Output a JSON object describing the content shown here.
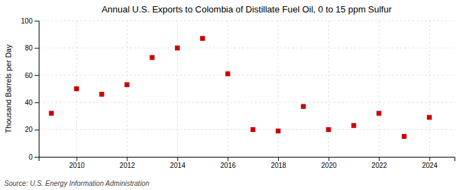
{
  "chart_data": {
    "type": "scatter",
    "title": "Annual U.S. Exports to Colombia of Distillate Fuel Oil, 0 to 15 ppm Sulfur",
    "ylabel": "Thousand Barrels per Day",
    "annotations": [
      "Source: U.S. Energy Information Administration"
    ],
    "x": [
      2009,
      2010,
      2011,
      2012,
      2013,
      2014,
      2015,
      2016,
      2017,
      2018,
      2019,
      2020,
      2021,
      2022,
      2023,
      2024
    ],
    "values": [
      32,
      50,
      46,
      53,
      73,
      80,
      87,
      61,
      20,
      19,
      37,
      20,
      23,
      32,
      15,
      29
    ],
    "color": "#cc0000",
    "marker": "square",
    "xlim": [
      2008.5,
      2025.0
    ],
    "xticks": [
      2010,
      2012,
      2014,
      2016,
      2018,
      2020,
      2022,
      2024
    ],
    "ylim": [
      0,
      100
    ],
    "yticks": [
      0,
      20,
      40,
      60,
      80,
      100
    ],
    "grid": true
  }
}
